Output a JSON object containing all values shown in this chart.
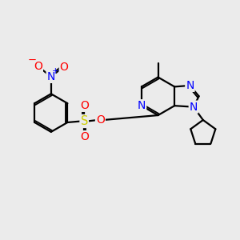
{
  "bg_color": "#ebebeb",
  "bond_color": "#000000",
  "bond_width": 1.6,
  "atom_colors": {
    "N": "#0000ff",
    "O": "#ff0000",
    "S": "#cccc00",
    "C": "#000000"
  },
  "font_size_atom": 8.5,
  "fig_size": [
    3.0,
    3.0
  ],
  "dpi": 100
}
